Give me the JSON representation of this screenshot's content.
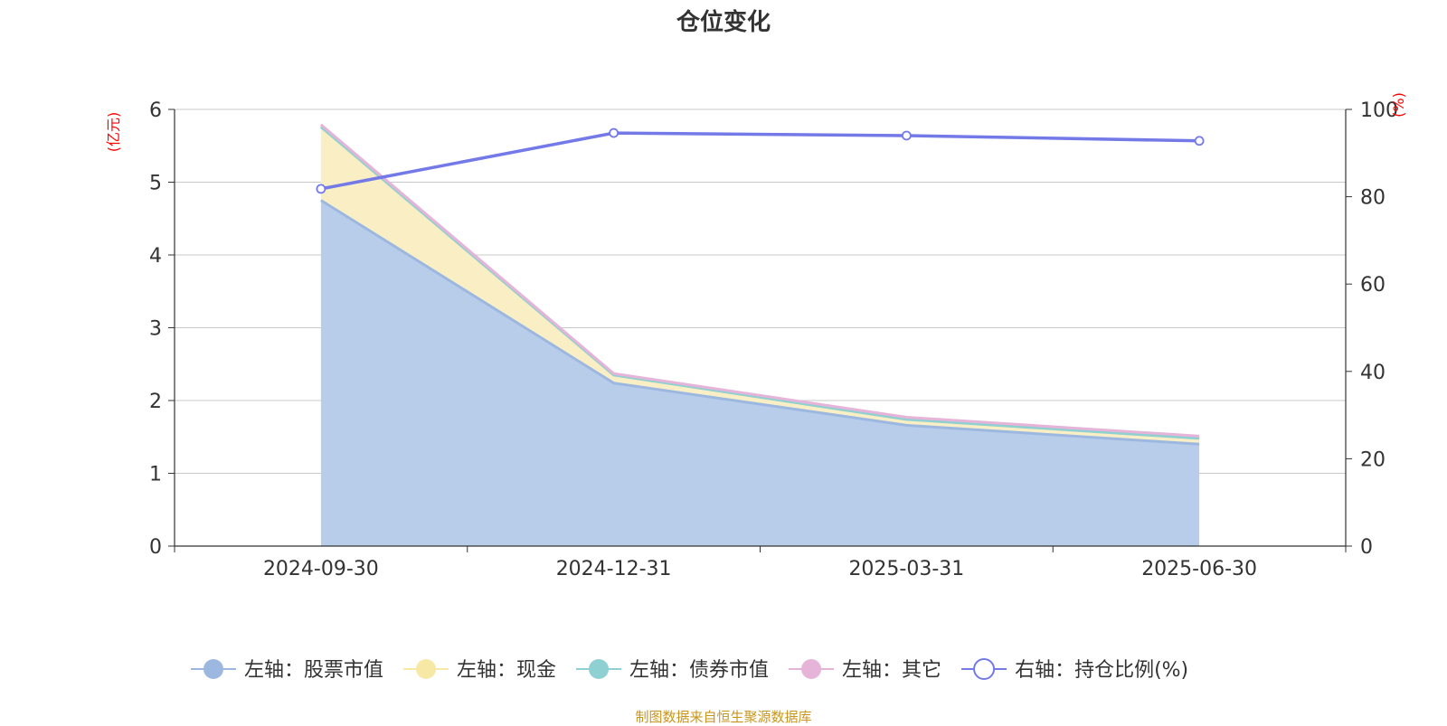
{
  "chart_data": {
    "type": "area",
    "title": "仓位变化",
    "categories": [
      "2024-09-30",
      "2024-12-31",
      "2025-03-31",
      "2025-06-30"
    ],
    "left_axis": {
      "label": "(亿元)",
      "ylim": [
        0,
        6
      ],
      "ticks": [
        "0",
        "1",
        "2",
        "3",
        "4",
        "5",
        "6"
      ]
    },
    "right_axis": {
      "label": "(%)",
      "ylim": [
        0,
        100
      ],
      "ticks": [
        "0",
        "20",
        "40",
        "60",
        "80",
        "100"
      ]
    },
    "grid": true,
    "legend_position": "bottom",
    "series": [
      {
        "name": "左轴：股票市值",
        "axis": "left",
        "stacked": true,
        "values": [
          4.75,
          2.24,
          1.66,
          1.4
        ],
        "color": "#9db8e0",
        "fill": "#b8cdea"
      },
      {
        "name": "左轴：现金",
        "axis": "left",
        "stacked": true,
        "values": [
          1.01,
          0.11,
          0.08,
          0.08
        ],
        "color": "#f7e8a6",
        "fill": "#faefc4"
      },
      {
        "name": "左轴：债券市值",
        "axis": "left",
        "stacked": true,
        "values": [
          0.0,
          0.0,
          0.0,
          0.0
        ],
        "color": "#8fd0d2",
        "fill": "#bde3e4"
      },
      {
        "name": "左轴：其它",
        "axis": "left",
        "stacked": true,
        "values": [
          0.03,
          0.02,
          0.03,
          0.03
        ],
        "color": "#e5b4d8",
        "fill": "#f0d3e6"
      },
      {
        "name": "右轴：持仓比例(%)",
        "axis": "right",
        "type": "line",
        "values": [
          81.8,
          94.6,
          94.0,
          92.8
        ],
        "color": "#7479e8"
      }
    ]
  },
  "source_note": "制图数据来自恒生聚源数据库"
}
